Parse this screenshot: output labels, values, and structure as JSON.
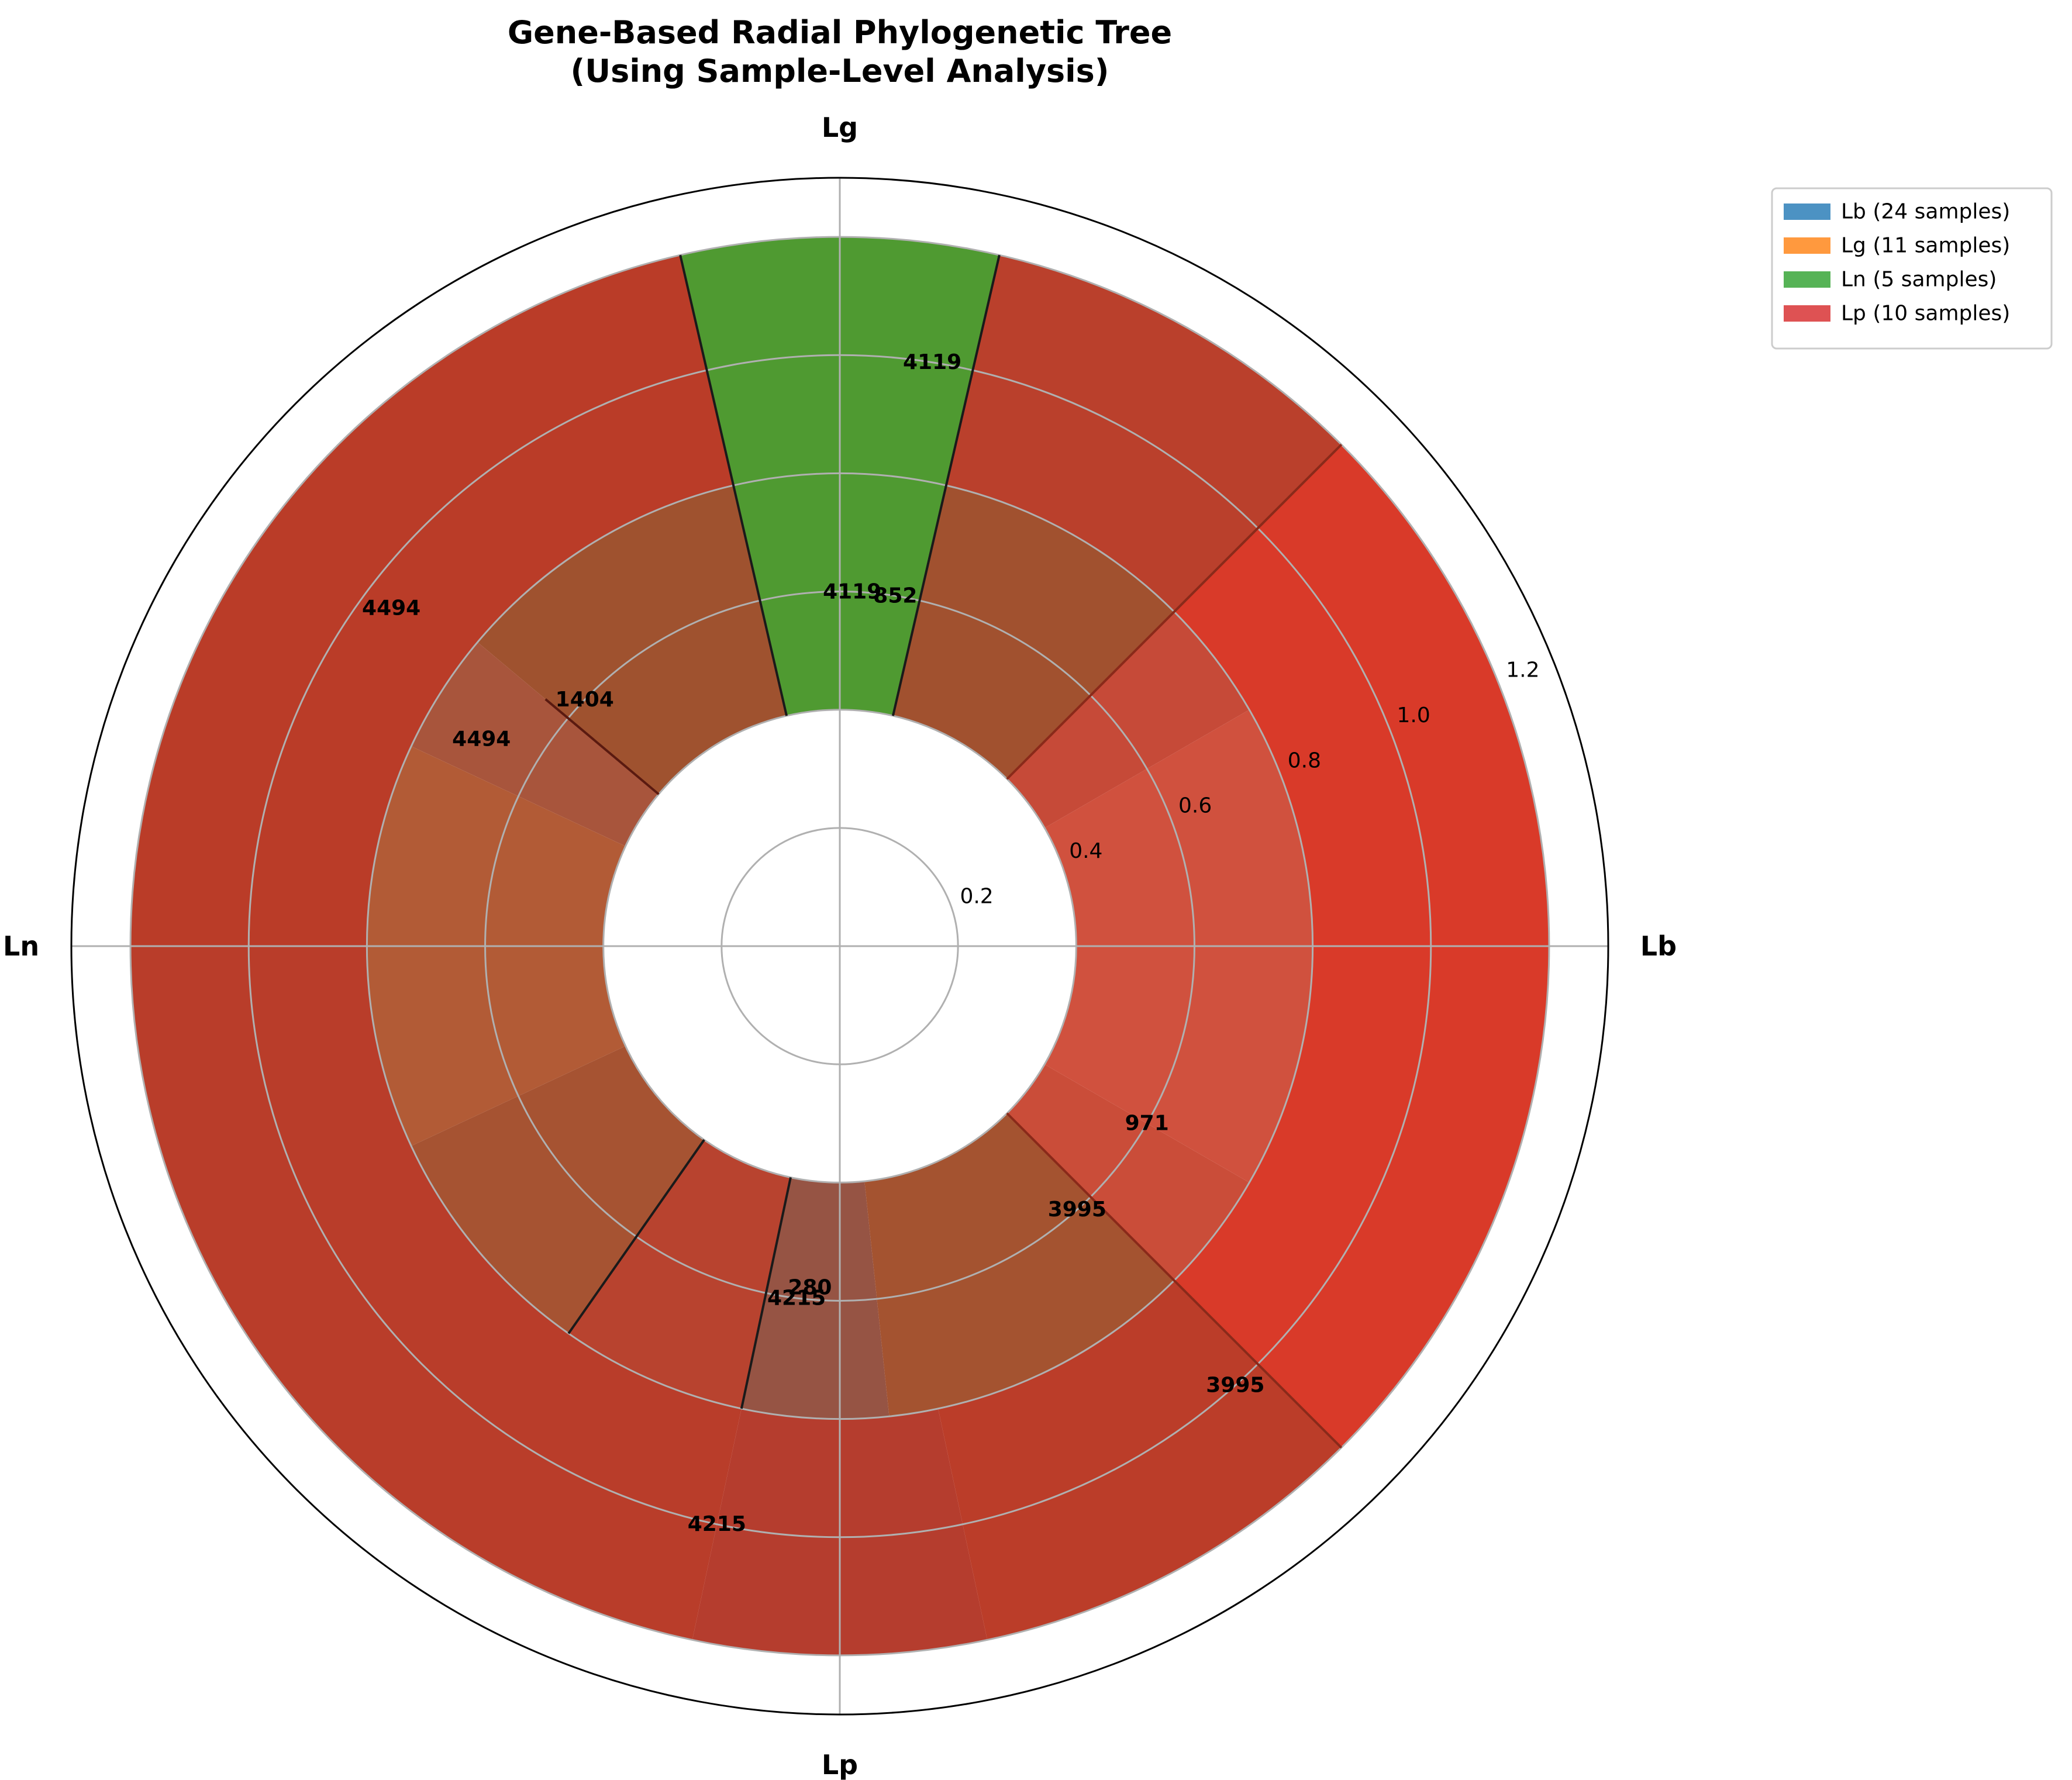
{
  "chart_data": {
    "type": "radial-bar",
    "title": "Gene-Based Radial Phylogenetic Tree\n(Using Sample-Level Analysis)",
    "theta_labels": [
      {
        "label": "Lb",
        "angle_deg": 0
      },
      {
        "label": "Lg",
        "angle_deg": 90
      },
      {
        "label": "Ln",
        "angle_deg": 180
      },
      {
        "label": "Lp",
        "angle_deg": 270
      }
    ],
    "r_ticks": [
      "0.2",
      "0.4",
      "0.6",
      "0.8",
      "1.0",
      "1.2"
    ],
    "r_tick_values": [
      0.2,
      0.4,
      0.6,
      0.8,
      1.0,
      1.2
    ],
    "rlim": [
      0,
      1.3
    ],
    "grid": true,
    "legend_position": "upper-right",
    "legend": [
      {
        "label": "Lb (24 samples)",
        "color": "#1f77b4"
      },
      {
        "label": "Lg (11 samples)",
        "color": "#ff7f0e"
      },
      {
        "label": "Ln (5 samples)",
        "color": "#2ca02c"
      },
      {
        "label": "Lp (10 samples)",
        "color": "#d62728"
      }
    ],
    "wedges": [
      {
        "name": "wedge-lb-outer",
        "theta_start": -45,
        "theta_end": 45,
        "r_inner": 0.8,
        "r_outer": 1.2,
        "color": "#d93a29"
      },
      {
        "name": "wedge-lb-inner",
        "theta_start": -30,
        "theta_end": 30,
        "r_inner": 0.4,
        "r_outer": 0.8,
        "color": "#d0513e"
      },
      {
        "name": "wedge-lb-band",
        "theta_start": -45,
        "theta_end": -30,
        "r_inner": 0.4,
        "r_outer": 0.8,
        "color": "#ca4d39"
      },
      {
        "name": "wedge-lb-band-top",
        "theta_start": 30,
        "theta_end": 45,
        "r_inner": 0.4,
        "r_outer": 0.8,
        "color": "#c64a38"
      },
      {
        "name": "wedge-lg-lp-outer-right",
        "theta_start": 45,
        "theta_end": 77,
        "r_inner": 0.8,
        "r_outer": 1.2,
        "color": "#ba402c"
      },
      {
        "name": "wedge-lg-lp-inner-right",
        "theta_start": 45,
        "theta_end": 77,
        "r_inner": 0.4,
        "r_outer": 0.8,
        "color": "#a1512f"
      },
      {
        "name": "wedge-ln-green",
        "theta_start": 77,
        "theta_end": 103,
        "r_inner": 0.4,
        "r_outer": 1.2,
        "color": "#4f9a31"
      },
      {
        "name": "wedge-lg-ln-outer-left",
        "theta_start": 103,
        "theta_end": 180,
        "r_inner": 0.8,
        "r_outer": 1.2,
        "color": "#ba3c28"
      },
      {
        "name": "wedge-lg-ln-inner-left",
        "theta_start": 103,
        "theta_end": 140,
        "r_inner": 0.4,
        "r_outer": 0.8,
        "color": "#9f522f"
      },
      {
        "name": "wedge-ln-inner-band",
        "theta_start": 140,
        "theta_end": 155,
        "r_inner": 0.4,
        "r_outer": 0.8,
        "color": "#a8553c"
      },
      {
        "name": "wedge-ln-inner",
        "theta_start": 155,
        "theta_end": 205,
        "r_inner": 0.4,
        "r_outer": 0.8,
        "color": "#b25b36"
      },
      {
        "name": "wedge-ln-lp-outer",
        "theta_start": 180,
        "theta_end": 258,
        "r_inner": 0.8,
        "r_outer": 1.2,
        "color": "#b93d2a"
      },
      {
        "name": "wedge-ln-lp-inner",
        "theta_start": 205,
        "theta_end": 235,
        "r_inner": 0.4,
        "r_outer": 0.8,
        "color": "#a65332"
      },
      {
        "name": "wedge-lp-inner-left",
        "theta_start": 235,
        "theta_end": 258,
        "r_inner": 0.4,
        "r_outer": 0.8,
        "color": "#b8432f"
      },
      {
        "name": "wedge-lp-inner-center",
        "theta_start": 258,
        "theta_end": 276,
        "r_inner": 0.4,
        "r_outer": 0.8,
        "color": "#965444"
      },
      {
        "name": "wedge-lp-outer-center",
        "theta_start": 258,
        "theta_end": 282,
        "r_inner": 0.8,
        "r_outer": 1.2,
        "color": "#b53d2e"
      },
      {
        "name": "wedge-lp-inner-right",
        "theta_start": 276,
        "theta_end": 315,
        "r_inner": 0.4,
        "r_outer": 0.8,
        "color": "#a45330"
      },
      {
        "name": "wedge-lp-lb-outer",
        "theta_start": 282,
        "theta_end": 315,
        "r_inner": 0.8,
        "r_outer": 1.2,
        "color": "#bb3d29"
      }
    ],
    "branch_lines": [
      {
        "theta": 45,
        "r_start": 0.4,
        "r_end": 1.2,
        "color": "#8a2a1a"
      },
      {
        "theta": 77,
        "r_start": 0.4,
        "r_end": 1.2,
        "color": "#1a1a1a"
      },
      {
        "theta": 103,
        "r_start": 0.4,
        "r_end": 1.2,
        "color": "#1a1a1a"
      },
      {
        "theta": 140,
        "r_start": 0.4,
        "r_end": 0.65,
        "color": "#5a1a10"
      },
      {
        "theta": 235,
        "r_start": 0.4,
        "r_end": 0.8,
        "color": "#1a1a1a"
      },
      {
        "theta": 258,
        "r_start": 0.4,
        "r_end": 0.8,
        "color": "#1a1a1a"
      },
      {
        "theta": 315,
        "r_start": 0.4,
        "r_end": 1.2,
        "color": "#8a2a1a"
      }
    ],
    "data_labels": [
      {
        "text": "4119",
        "theta": 81,
        "r": 1.0
      },
      {
        "text": "4119",
        "theta": 88,
        "r": 0.6
      },
      {
        "text": "852",
        "theta": 81,
        "r": 0.6
      },
      {
        "text": "4494",
        "theta": 143,
        "r": 0.95
      },
      {
        "text": "1404",
        "theta": 136,
        "r": 0.6
      },
      {
        "text": "4494",
        "theta": 150,
        "r": 0.7
      },
      {
        "text": "971",
        "theta": 330,
        "r": 0.6
      },
      {
        "text": "3995",
        "theta": 312,
        "r": 0.6
      },
      {
        "text": "3995",
        "theta": 312,
        "r": 1.0
      },
      {
        "text": "4215",
        "theta": 263,
        "r": 0.6
      },
      {
        "text": "280",
        "theta": 265,
        "r": 0.58
      },
      {
        "text": "4215",
        "theta": 258,
        "r": 1.0
      }
    ]
  }
}
